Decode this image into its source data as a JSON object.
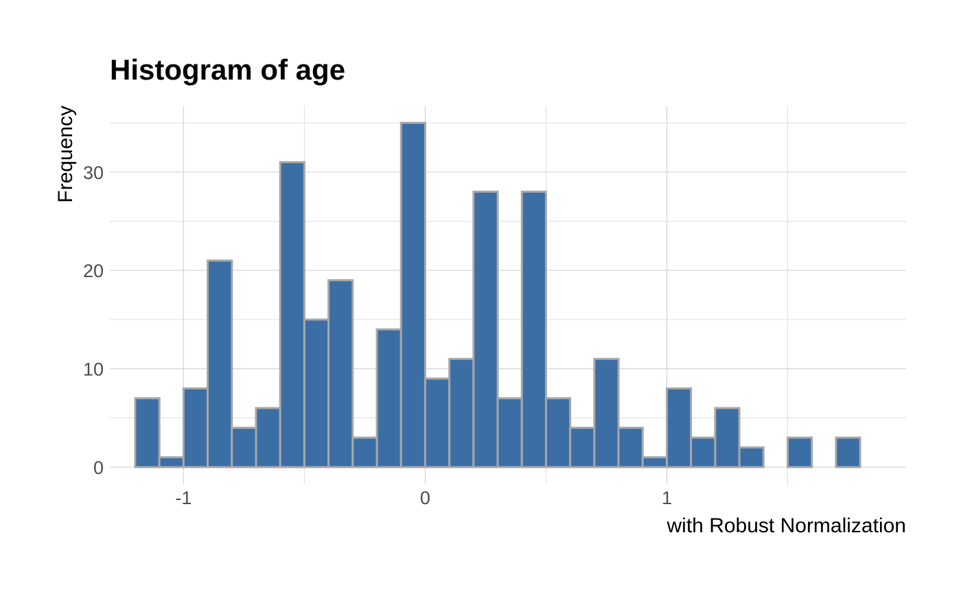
{
  "chart_data": {
    "type": "bar",
    "title": "Histogram of age",
    "subtitle": "",
    "xlabel": "with Robust Normalization",
    "ylabel": "Frequency",
    "bin_width": 0.1,
    "bins": [
      {
        "x": -1.15,
        "count": 7
      },
      {
        "x": -1.05,
        "count": 1
      },
      {
        "x": -0.95,
        "count": 8
      },
      {
        "x": -0.85,
        "count": 21
      },
      {
        "x": -0.75,
        "count": 4
      },
      {
        "x": -0.65,
        "count": 6
      },
      {
        "x": -0.55,
        "count": 31
      },
      {
        "x": -0.45,
        "count": 15
      },
      {
        "x": -0.35,
        "count": 19
      },
      {
        "x": -0.25,
        "count": 3
      },
      {
        "x": -0.15,
        "count": 14
      },
      {
        "x": -0.05,
        "count": 35
      },
      {
        "x": 0.05,
        "count": 9
      },
      {
        "x": 0.15,
        "count": 11
      },
      {
        "x": 0.25,
        "count": 28
      },
      {
        "x": 0.35,
        "count": 7
      },
      {
        "x": 0.45,
        "count": 28
      },
      {
        "x": 0.55,
        "count": 7
      },
      {
        "x": 0.65,
        "count": 4
      },
      {
        "x": 0.75,
        "count": 11
      },
      {
        "x": 0.85,
        "count": 4
      },
      {
        "x": 0.95,
        "count": 1
      },
      {
        "x": 1.05,
        "count": 8
      },
      {
        "x": 1.15,
        "count": 3
      },
      {
        "x": 1.25,
        "count": 6
      },
      {
        "x": 1.35,
        "count": 2
      },
      {
        "x": 1.45,
        "count": 0
      },
      {
        "x": 1.55,
        "count": 3
      },
      {
        "x": 1.65,
        "count": 0
      },
      {
        "x": 1.75,
        "count": 3
      }
    ],
    "x_ticks": [
      {
        "value": -1,
        "label": "-1"
      },
      {
        "value": 0,
        "label": "0"
      },
      {
        "value": 1,
        "label": "1"
      }
    ],
    "y_ticks": [
      {
        "value": 0,
        "label": "0"
      },
      {
        "value": 10,
        "label": "10"
      },
      {
        "value": 20,
        "label": "20"
      },
      {
        "value": 30,
        "label": "30"
      }
    ],
    "xlim": [
      -1.305,
      1.99
    ],
    "ylim": [
      0,
      36.75
    ],
    "grid": true,
    "legend": "none",
    "colors": {
      "bar_fill": "#3a6ea5",
      "bar_outline": "#a8a8a8",
      "gridline": "#d4d4d4"
    }
  }
}
